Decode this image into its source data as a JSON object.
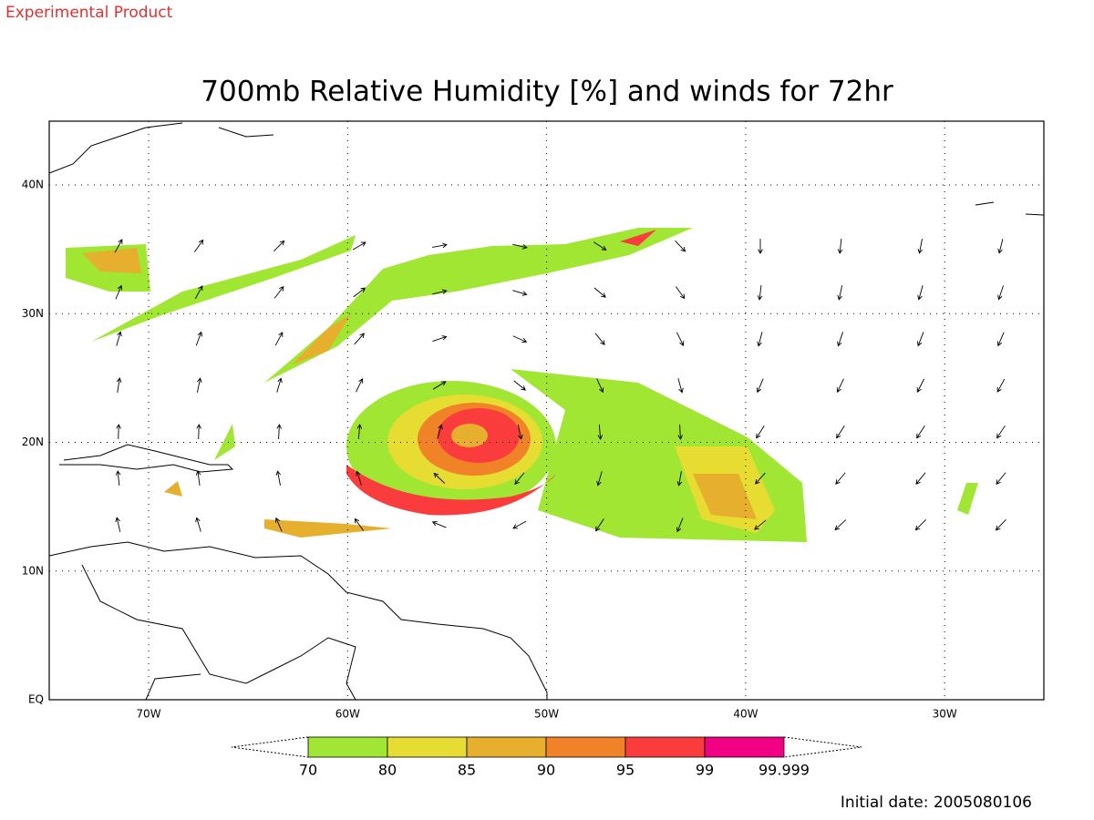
{
  "header": {
    "label": "Experimental Product"
  },
  "title": "700mb Relative Humidity [%] and winds for 72hr",
  "map": {
    "lat_labels": [
      "40N",
      "30N",
      "20N",
      "10N",
      "EQ"
    ],
    "lon_labels": [
      "70W",
      "60W",
      "50W",
      "40W",
      "30W"
    ]
  },
  "colorbar": {
    "levels": [
      70,
      80,
      85,
      90,
      95,
      99,
      99.999
    ],
    "colors": [
      "#a0e632",
      "#e6dc32",
      "#e6af2d",
      "#f08228",
      "#fa3c3c",
      "#f00082"
    ]
  },
  "footer": {
    "initial_date": "Initial date: 2005080106"
  }
}
